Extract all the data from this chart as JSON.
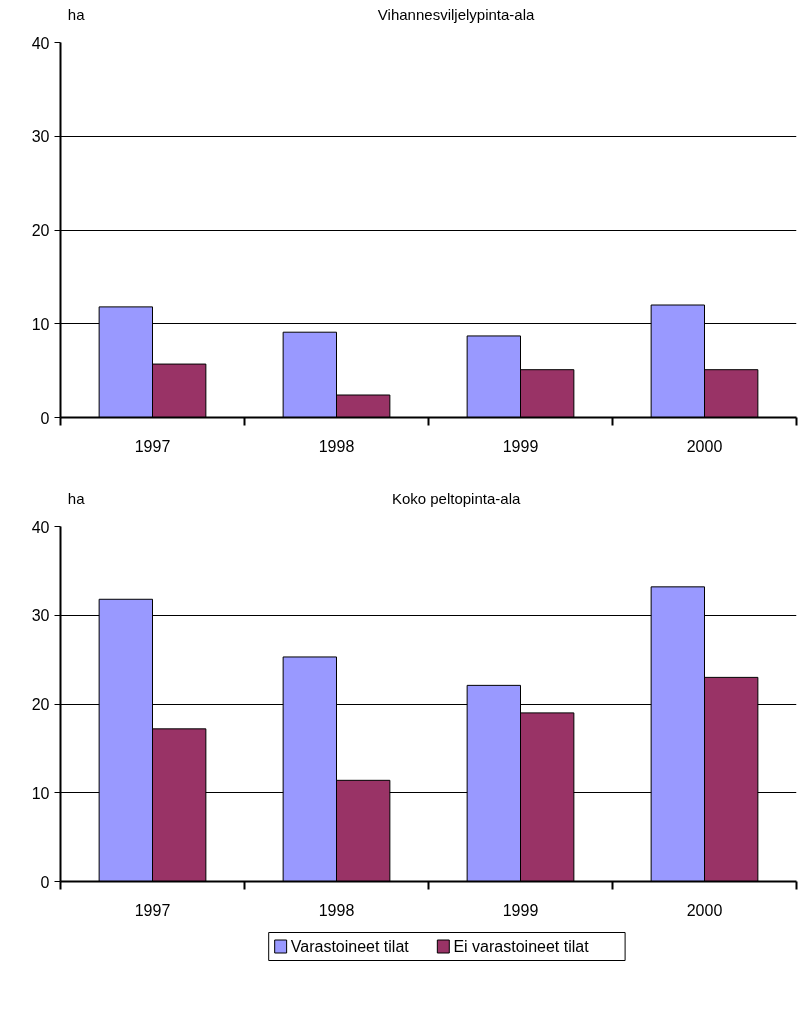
{
  "chart_data": [
    {
      "type": "bar",
      "title": "Vihannesviljelypinta-ala",
      "ylabel": "ha",
      "categories": [
        "1997",
        "1998",
        "1999",
        "2000"
      ],
      "series": [
        {
          "color": "#9999ff",
          "values": [
            11.8,
            9.1,
            8.7,
            12.0
          ]
        },
        {
          "color": "#993366",
          "values": [
            5.7,
            2.4,
            5.1,
            5.1
          ]
        }
      ],
      "ylim": [
        0,
        40
      ],
      "yticks": [
        0,
        10,
        20,
        30,
        40
      ],
      "grid": "y"
    },
    {
      "type": "bar",
      "title": "Koko peltopinta-ala",
      "ylabel": "ha",
      "categories": [
        "1997",
        "1998",
        "1999",
        "2000"
      ],
      "series": [
        {
          "name": "Varastoineet tilat",
          "color": "#9999ff",
          "values": [
            31.8,
            25.3,
            22.1,
            33.2
          ]
        },
        {
          "name": "Ei varastoineet tilat",
          "color": "#993366",
          "values": [
            17.2,
            11.4,
            19.0,
            23.0
          ]
        }
      ],
      "ylim": [
        0,
        40
      ],
      "yticks": [
        0,
        10,
        20,
        30,
        40
      ],
      "grid": "y",
      "legend": "bottom"
    }
  ]
}
